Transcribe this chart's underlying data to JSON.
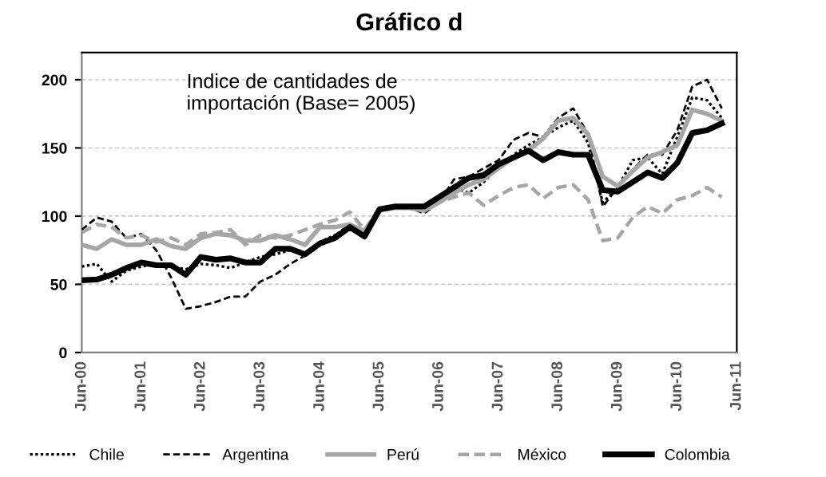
{
  "chart_data": {
    "type": "line",
    "title": "Gráfico d",
    "annotations": [
      "Indice de cantidades de\nimportación (Base= 2005)"
    ],
    "x": [
      "2000-06",
      "2000-09",
      "2000-12",
      "2001-03",
      "2001-06",
      "2001-09",
      "2001-12",
      "2002-03",
      "2002-06",
      "2002-09",
      "2002-12",
      "2003-03",
      "2003-06",
      "2003-09",
      "2003-12",
      "2004-03",
      "2004-06",
      "2004-09",
      "2004-12",
      "2005-03",
      "2005-06",
      "2005-09",
      "2005-12",
      "2006-03",
      "2006-06",
      "2006-09",
      "2006-12",
      "2007-03",
      "2007-06",
      "2007-09",
      "2007-12",
      "2008-03",
      "2008-06",
      "2008-09",
      "2008-12",
      "2009-03",
      "2009-06",
      "2009-09",
      "2009-12",
      "2010-03",
      "2010-06",
      "2010-09",
      "2010-12",
      "2011-03"
    ],
    "series": [
      {
        "name": "Chile",
        "color": "#000000",
        "line_style": "dotted",
        "values": [
          63,
          65,
          52,
          60,
          63,
          65,
          63,
          61,
          65,
          64,
          62,
          66,
          70,
          72,
          75,
          71,
          81,
          86,
          92,
          86,
          104,
          106,
          107,
          104,
          112,
          121,
          117,
          125,
          136,
          145,
          152,
          158,
          165,
          170,
          154,
          110,
          121,
          141,
          143,
          131,
          158,
          187,
          185,
          172
        ]
      },
      {
        "name": "Argentina",
        "color": "#000000",
        "line_style": "dashed",
        "values": [
          90,
          99,
          96,
          84,
          87,
          75,
          55,
          32,
          34,
          37,
          41,
          41,
          52,
          57,
          65,
          71,
          79,
          86,
          94,
          88,
          104,
          106,
          106,
          102,
          110,
          127,
          129,
          135,
          141,
          156,
          161,
          158,
          172,
          179,
          160,
          107,
          121,
          134,
          145,
          145,
          163,
          195,
          200,
          179
        ]
      },
      {
        "name": "Perú",
        "color": "#a6a6a6",
        "line_style": "solid",
        "values": [
          79,
          76,
          83,
          79,
          79,
          83,
          78,
          76,
          84,
          87,
          86,
          82,
          82,
          86,
          83,
          79,
          92,
          92,
          94,
          89,
          104,
          106,
          106,
          104,
          110,
          117,
          123,
          127,
          135,
          143,
          148,
          157,
          170,
          172,
          160,
          129,
          122,
          133,
          143,
          147,
          152,
          178,
          175,
          170
        ]
      },
      {
        "name": "México",
        "color": "#a6a6a6",
        "line_style": "dashed",
        "values": [
          88,
          94,
          92,
          84,
          86,
          81,
          84,
          79,
          87,
          88,
          90,
          79,
          86,
          84,
          86,
          90,
          94,
          97,
          103,
          90,
          106,
          107,
          107,
          106,
          110,
          114,
          117,
          108,
          115,
          121,
          123,
          113,
          121,
          123,
          112,
          82,
          84,
          99,
          107,
          102,
          112,
          115,
          121,
          114
        ]
      },
      {
        "name": "Colombia",
        "color": "#000000",
        "line_style": "solid",
        "values": [
          53,
          53.5,
          57,
          62,
          66,
          64,
          64,
          57,
          70,
          68,
          69,
          66,
          66,
          76,
          76,
          72,
          80,
          84,
          92,
          85,
          105,
          107,
          107,
          107,
          114,
          121,
          128,
          130,
          138,
          143,
          148,
          141,
          147,
          145,
          145,
          119,
          118,
          125,
          132,
          128,
          139,
          161,
          163,
          168
        ]
      }
    ],
    "xlim": [
      "2000-06",
      "2011-06"
    ],
    "xticks": [
      {
        "value": "2000-06",
        "label": "Jun-00"
      },
      {
        "value": "2001-06",
        "label": "Jun-01"
      },
      {
        "value": "2002-06",
        "label": "Jun-02"
      },
      {
        "value": "2003-06",
        "label": "Jun-03"
      },
      {
        "value": "2004-06",
        "label": "Jun-04"
      },
      {
        "value": "2005-06",
        "label": "Jun-05"
      },
      {
        "value": "2006-06",
        "label": "Jun-06"
      },
      {
        "value": "2007-06",
        "label": "Jun-07"
      },
      {
        "value": "2008-06",
        "label": "Jun-08"
      },
      {
        "value": "2009-06",
        "label": "Jun-09"
      },
      {
        "value": "2010-06",
        "label": "Jun-10"
      },
      {
        "value": "2011-06",
        "label": "Jun-11"
      }
    ],
    "ylim": [
      0,
      220
    ],
    "yticks": [
      0,
      50,
      100,
      150,
      200
    ],
    "grid": "y",
    "legend": "bottom",
    "marker": "none"
  }
}
